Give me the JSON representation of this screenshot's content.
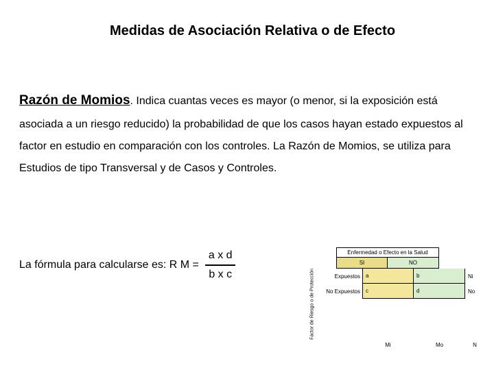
{
  "title": "Medidas de Asociación Relativa o de Efecto",
  "subheading": "Razón de Momios",
  "paragraph": ". Indica cuantas veces es mayor (o menor, si la exposición está asociada a un riesgo reducido) la probabilidad de que los casos hayan estado expuestos al factor en estudio en comparación con los controles. La Razón de Momios, se utiliza para Estudios de tipo Transversal y de Casos y Controles.",
  "formula_label": "La fórmula para calcularse es: R M =",
  "formula": {
    "numerator": "a x d",
    "denominator": "b x c"
  },
  "table": {
    "caption": "Enfermedad o Efecto en la Salud",
    "col_headers": [
      "SI",
      "NO"
    ],
    "vertical_label": "Factor de Riesgo o de Protección",
    "row_labels": [
      "Expuestos",
      "No Expuestos"
    ],
    "cells": [
      [
        "a",
        "b"
      ],
      [
        "c",
        "d"
      ]
    ],
    "row_margins": [
      "Ni",
      "No"
    ],
    "col_margins": [
      "Mi",
      "Mo"
    ],
    "grand_total": "N",
    "cell_colors": {
      "col_hdr_si": "#e9dd8a",
      "col_hdr_no": "#d9edcf",
      "a": "#f4e79c",
      "b": "#d9edcf",
      "c": "#f4e79c",
      "d": "#d9edcf"
    }
  }
}
